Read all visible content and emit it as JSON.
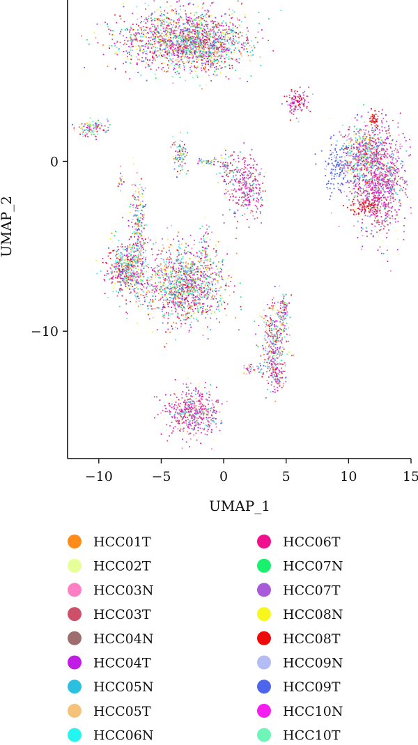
{
  "chart_data": {
    "type": "scatter",
    "title": "",
    "xlabel": "UMAP_1",
    "ylabel": "UMAP_2",
    "xlim": [
      -12.5,
      15
    ],
    "ylim": [
      -17.5,
      9.5
    ],
    "xticks": [
      -10,
      -5,
      0,
      5,
      10,
      15
    ],
    "yticks": [
      0,
      -10
    ],
    "tick_labels_x": [
      "−10",
      "−5",
      "0",
      "5",
      "10",
      "15"
    ],
    "tick_labels_y": [
      "0",
      "−10"
    ],
    "grid": false,
    "legend_position": "bottom",
    "series": [
      {
        "name": "HCC01T",
        "color": "#ff8c1a"
      },
      {
        "name": "HCC02T",
        "color": "#e6ff99"
      },
      {
        "name": "HCC03N",
        "color": "#ff7fc4"
      },
      {
        "name": "HCC03T",
        "color": "#cd5068"
      },
      {
        "name": "HCC04N",
        "color": "#9e6e6e"
      },
      {
        "name": "HCC04T",
        "color": "#c21be6"
      },
      {
        "name": "HCC05N",
        "color": "#2bc0e0"
      },
      {
        "name": "HCC05T",
        "color": "#f5c27a"
      },
      {
        "name": "HCC06N",
        "color": "#24f5f0"
      },
      {
        "name": "HCC06T",
        "color": "#f00f8c"
      },
      {
        "name": "HCC07N",
        "color": "#19f06e"
      },
      {
        "name": "HCC07T",
        "color": "#a85ad8"
      },
      {
        "name": "HCC08N",
        "color": "#f7f71e"
      },
      {
        "name": "HCC08T",
        "color": "#ee0a0a"
      },
      {
        "name": "HCC09N",
        "color": "#b3bcf5"
      },
      {
        "name": "HCC09T",
        "color": "#4d65ea"
      },
      {
        "name": "HCC10N",
        "color": "#f51eef"
      },
      {
        "name": "HCC10T",
        "color": "#6ff5b7"
      }
    ],
    "clusters": [
      {
        "x": -3.3,
        "y": 7.2,
        "sx": 2.6,
        "sy": 0.9,
        "n": 1500,
        "palette": "mixed"
      },
      {
        "x": -1.5,
        "y": 6.9,
        "sx": 1.4,
        "sy": 0.7,
        "n": 500,
        "palette": "mixed"
      },
      {
        "x": -10.5,
        "y": 2.0,
        "sx": 0.6,
        "sy": 0.25,
        "n": 120,
        "palette": "mixed"
      },
      {
        "x": 5.8,
        "y": 3.5,
        "sx": 0.5,
        "sy": 0.4,
        "n": 120,
        "palette": "red-mix"
      },
      {
        "x": -3.5,
        "y": 0.3,
        "sx": 0.3,
        "sy": 0.5,
        "n": 90,
        "palette": "mixed"
      },
      {
        "x": 1.7,
        "y": -1.5,
        "sx": 0.7,
        "sy": 0.9,
        "n": 320,
        "palette": "pink-mix"
      },
      {
        "x": 0.2,
        "y": -0.3,
        "sx": 0.4,
        "sy": 0.4,
        "n": 70,
        "palette": "mixed"
      },
      {
        "x": 12.4,
        "y": -1.0,
        "sx": 1.0,
        "sy": 1.5,
        "n": 1100,
        "palette": "pink-mix"
      },
      {
        "x": 11.0,
        "y": 0.4,
        "sx": 0.8,
        "sy": 1.0,
        "n": 450,
        "palette": "mixed"
      },
      {
        "x": 9.0,
        "y": -0.5,
        "sx": 0.6,
        "sy": 0.8,
        "n": 150,
        "palette": "blue"
      },
      {
        "x": 11.3,
        "y": -2.6,
        "sx": 0.6,
        "sy": 0.3,
        "n": 90,
        "palette": "red"
      },
      {
        "x": 12.0,
        "y": 2.5,
        "sx": 0.15,
        "sy": 0.3,
        "n": 40,
        "palette": "red"
      },
      {
        "x": -7.8,
        "y": -6.3,
        "sx": 0.8,
        "sy": 0.8,
        "n": 550,
        "palette": "mixed"
      },
      {
        "x": -6.9,
        "y": -3.6,
        "sx": 0.3,
        "sy": 1.1,
        "n": 200,
        "palette": "mixed"
      },
      {
        "x": -3.2,
        "y": -7.3,
        "sx": 1.6,
        "sy": 1.1,
        "n": 1300,
        "palette": "mixed"
      },
      {
        "x": 4.0,
        "y": -10.6,
        "sx": 0.5,
        "sy": 1.2,
        "n": 350,
        "palette": "mixed"
      },
      {
        "x": 4.8,
        "y": -8.6,
        "sx": 0.2,
        "sy": 0.5,
        "n": 80,
        "palette": "mixed"
      },
      {
        "x": 4.2,
        "y": -12.6,
        "sx": 0.3,
        "sy": 0.4,
        "n": 80,
        "palette": "pink-mix"
      },
      {
        "x": 2.2,
        "y": -12.2,
        "sx": 0.4,
        "sy": 0.2,
        "n": 40,
        "palette": "mixed"
      },
      {
        "x": -2.5,
        "y": -14.8,
        "sx": 1.0,
        "sy": 0.7,
        "n": 500,
        "palette": "pink-mix"
      },
      {
        "x": -1.5,
        "y": -5.2,
        "sx": 0.2,
        "sy": 0.8,
        "n": 50,
        "palette": "mixed"
      },
      {
        "x": -1.3,
        "y": 0.0,
        "sx": 0.5,
        "sy": 0.1,
        "n": 40,
        "palette": "mixed"
      },
      {
        "x": -8.3,
        "y": -1.0,
        "sx": 0.1,
        "sy": 0.3,
        "n": 15,
        "palette": "mixed"
      }
    ]
  }
}
